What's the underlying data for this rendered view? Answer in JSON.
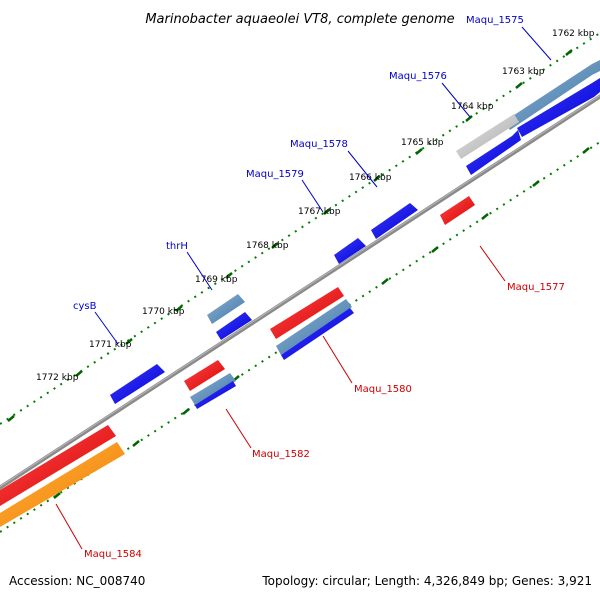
{
  "title": "Marinobacter aquaeolei VT8, complete genome",
  "accession": "Accession: NC_008740",
  "summary": "Topology: circular; Length: 4,326,849 bp; Genes: 3,921",
  "ticks": [
    "1762 kbp",
    "1763 kbp",
    "1764 kbp",
    "1765 kbp",
    "1766 kbp",
    "1767 kbp",
    "1768 kbp",
    "1769 kbp",
    "1770 kbp",
    "1771 kbp",
    "1772 kbp"
  ],
  "genes": [
    {
      "name": "Maqu_1575",
      "strand": "forward",
      "color": "#4682b4"
    },
    {
      "name": "Maqu_1576",
      "strand": "forward",
      "color": "#c0c0c0"
    },
    {
      "name": "Maqu_1578",
      "strand": "forward",
      "color": "#0000ff"
    },
    {
      "name": "Maqu_1579",
      "strand": "forward",
      "color": "#0000ff"
    },
    {
      "name": "thrH",
      "strand": "forward",
      "color": "#4682b4"
    },
    {
      "name": "cysB",
      "strand": "forward",
      "color": "#0000ff"
    },
    {
      "name": "Maqu_1577",
      "strand": "reverse",
      "color": "#ff0000"
    },
    {
      "name": "Maqu_1580",
      "strand": "reverse",
      "color": "#ff0000"
    },
    {
      "name": "Maqu_1582",
      "strand": "reverse",
      "color": "#ff0000"
    },
    {
      "name": "Maqu_1584",
      "strand": "reverse",
      "color": "#ff8c00"
    }
  ],
  "colors": {
    "forward": "#0000ff",
    "reverse": "#ff0000",
    "backbone": "#808080",
    "ticks": "#008000",
    "forward_label": "#0000cd",
    "reverse_label": "#cc0000"
  }
}
